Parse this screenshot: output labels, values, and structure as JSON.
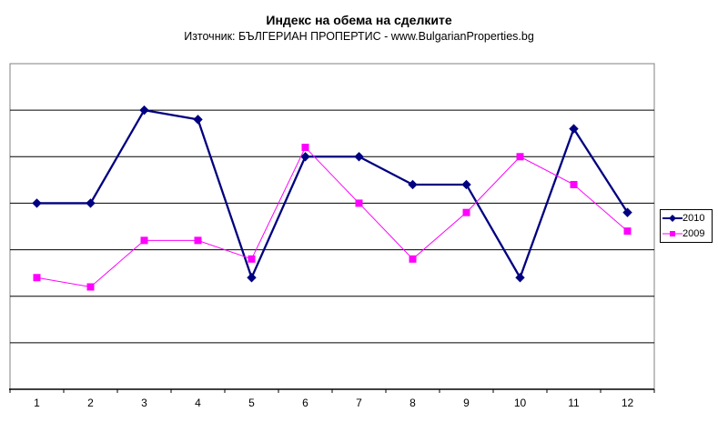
{
  "header": {
    "title": "Индекс на обема на сделките",
    "subtitle": "Източник: БЪЛГЕРИАН ПРОПЕРТИС - www.BulgarianProperties.bg"
  },
  "legend": {
    "position": "right",
    "entries": [
      {
        "label": "2010",
        "color": "#000080",
        "marker": "diamond"
      },
      {
        "label": "2009",
        "color": "#FF00FF",
        "marker": "square"
      }
    ]
  },
  "axes": {
    "x_tick_labels": [
      "1",
      "2",
      "3",
      "4",
      "5",
      "6",
      "7",
      "8",
      "9",
      "10",
      "11",
      "12"
    ],
    "y_axis_labels_visible": false
  },
  "colors": {
    "background": "#ffffff",
    "plot_border": "#808080",
    "gridline": "#000000",
    "axis_line": "#000000",
    "text": "#000000",
    "series_2010": "#000080",
    "series_2009": "#FF00FF"
  },
  "chart_data": {
    "type": "line",
    "title": "Индекс на обема на сделките",
    "subtitle": "Източник: БЪЛГЕРИАН ПРОПЕРТИС - www.BulgarianProperties.bg",
    "categories": [
      "1",
      "2",
      "3",
      "4",
      "5",
      "6",
      "7",
      "8",
      "9",
      "10",
      "11",
      "12"
    ],
    "series": [
      {
        "name": "2010",
        "color": "#000080",
        "marker": "diamond",
        "line_width": 2.3,
        "values": [
          4.0,
          4.0,
          6.0,
          5.8,
          2.4,
          5.0,
          5.0,
          4.4,
          4.4,
          2.4,
          5.6,
          3.8
        ]
      },
      {
        "name": "2009",
        "color": "#FF00FF",
        "marker": "square",
        "line_width": 1,
        "values": [
          2.4,
          2.2,
          3.2,
          3.2,
          2.8,
          5.2,
          4.0,
          2.8,
          3.8,
          5.0,
          4.4,
          3.4
        ]
      }
    ],
    "xlabel": "",
    "ylabel": "",
    "ylim": [
      0,
      7
    ],
    "y_gridline_step": 1,
    "grid": true,
    "legend_position": "right",
    "note": "y axis has no tick labels; values estimated in gridline units (1 unit = one horizontal gridline interval, plot bottom = 0)"
  }
}
